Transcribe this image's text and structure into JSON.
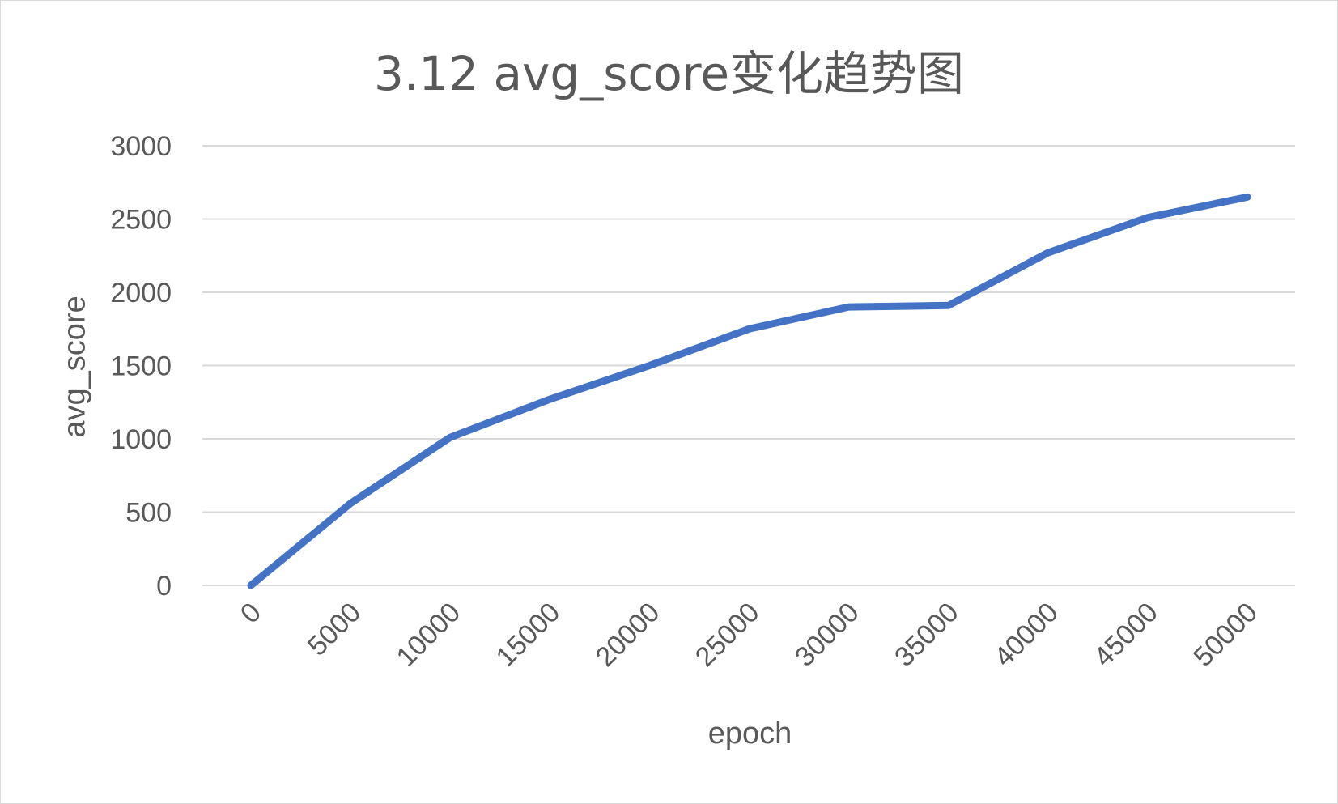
{
  "chart_data": {
    "type": "line",
    "title": "3.12 avg_score变化趋势图",
    "xlabel": "epoch",
    "ylabel": "avg_score",
    "categories": [
      "0",
      "5000",
      "10000",
      "15000",
      "20000",
      "25000",
      "30000",
      "35000",
      "40000",
      "45000",
      "50000"
    ],
    "series": [
      {
        "values": [
          0,
          560,
          1010,
          1270,
          1500,
          1750,
          1900,
          1910,
          2270,
          2510,
          2650
        ]
      }
    ],
    "y_ticks": [
      "0",
      "500",
      "1000",
      "1500",
      "2000",
      "2500",
      "3000"
    ],
    "ylim": [
      0,
      3000
    ],
    "grid": true,
    "legend": "none",
    "colors": {
      "line": "#4472C4",
      "grid": "#d9d9d9",
      "text": "#595959"
    }
  }
}
